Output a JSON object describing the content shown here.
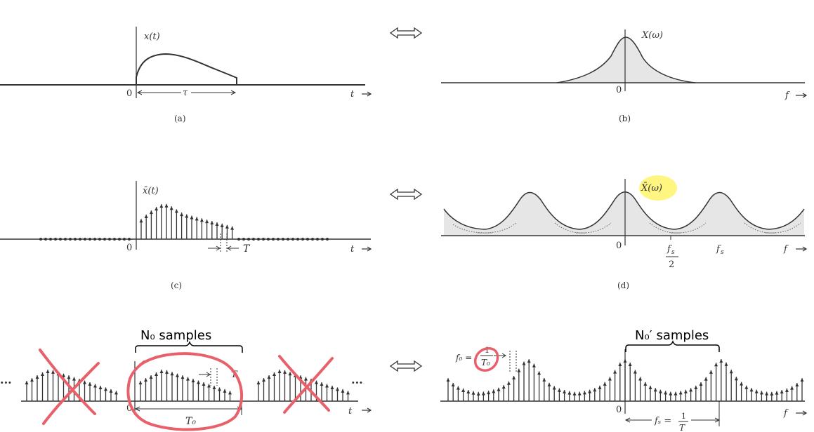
{
  "panels": {
    "a": {
      "caption": "(a)",
      "fn_label": "x(t)",
      "origin": "0",
      "tau": "τ",
      "axis": "t"
    },
    "b": {
      "caption": "(b)",
      "fn_label": "X(ω)",
      "origin": "0",
      "axis": "f"
    },
    "c": {
      "caption": "(c)",
      "fn_label": "x̄(t)",
      "origin": "0",
      "T": "T",
      "axis": "t"
    },
    "d": {
      "caption": "(d)",
      "fn_label": "X̄(ω)",
      "origin": "0",
      "fs_half_num": "f",
      "fs_half_sub": "s",
      "fs_half_den": "2",
      "fs": "f",
      "fs_sub": "s",
      "axis": "f"
    },
    "e": {
      "samples_label": "N₀ samples",
      "origin": "0",
      "T0": "T₀",
      "T": "T",
      "ellipsis": "···",
      "axis": "t"
    },
    "f": {
      "samples_label": "N₀′ samples",
      "origin": "0",
      "f0": "f₀ =",
      "f0_num": "1",
      "f0_den": "T₀",
      "fs_eq": "fₛ =",
      "fs_num": "1",
      "fs_den": "T",
      "axis": "f"
    }
  },
  "arrows": {
    "double_arrow": "⟺"
  },
  "colors": {
    "ink": "#333333",
    "fill": "#e6e6e6",
    "annot": "#e8606a",
    "highlight": "#fff36b"
  }
}
